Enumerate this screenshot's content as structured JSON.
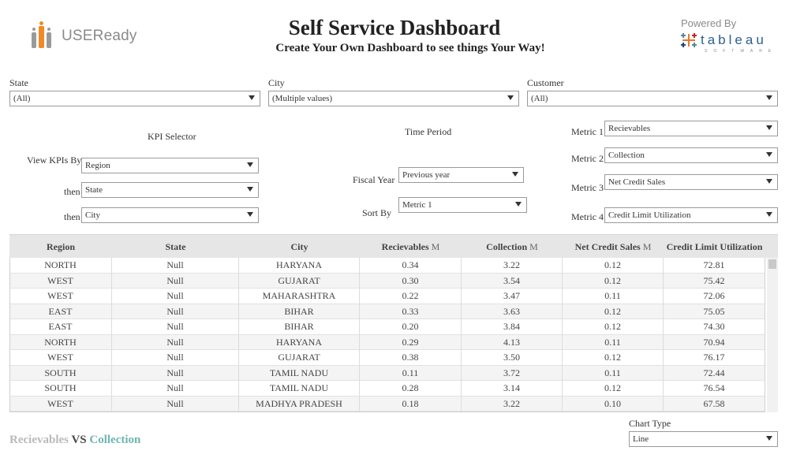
{
  "header": {
    "logo_text": "USEReady",
    "title": "Self Service Dashboard",
    "subtitle": "Create Your Own Dashboard to see things Your Way!",
    "powered_by": "Powered By",
    "tableau_word": "tableau",
    "tableau_sub": "SOFTWARE"
  },
  "filters": {
    "state": {
      "label": "State",
      "value": "(All)"
    },
    "city": {
      "label": "City",
      "value": "(Multiple values)"
    },
    "customer": {
      "label": "Customer",
      "value": "(All)"
    }
  },
  "kpi": {
    "selector_title": "KPI Selector",
    "view_by_label": "View KPIs By",
    "view_by_value": "Region",
    "then1_label": "then",
    "then1_value": "State",
    "then2_label": "then",
    "then2_value": "City"
  },
  "time": {
    "title": "Time Period",
    "fiscal_label": "Fiscal Year",
    "fiscal_value": "Previous year",
    "sort_label": "Sort By",
    "sort_value": "Metric 1"
  },
  "metrics": {
    "m1_label": "Metric 1",
    "m1_value": "Recievables",
    "m2_label": "Metric 2",
    "m2_value": "Collection",
    "m3_label": "Metric 3",
    "m3_value": "Net Credit Sales",
    "m4_label": "Metric 4",
    "m4_value": "Credit Limit Utilization"
  },
  "table": {
    "columns": [
      "Region",
      "State",
      "City",
      "Recievables",
      "Collection",
      "Net Credit Sales",
      "Credit Limit Utilization"
    ],
    "units": [
      "",
      "",
      "",
      "M",
      "M",
      "M",
      ""
    ],
    "rows": [
      [
        "NORTH",
        "Null",
        "HARYANA",
        "0.34",
        "3.22",
        "0.12",
        "72.81"
      ],
      [
        "WEST",
        "Null",
        "GUJARAT",
        "0.30",
        "3.54",
        "0.12",
        "75.42"
      ],
      [
        "WEST",
        "Null",
        "MAHARASHTRA",
        "0.22",
        "3.47",
        "0.11",
        "72.06"
      ],
      [
        "EAST",
        "Null",
        "BIHAR",
        "0.33",
        "3.63",
        "0.12",
        "75.05"
      ],
      [
        "EAST",
        "Null",
        "BIHAR",
        "0.20",
        "3.84",
        "0.12",
        "74.30"
      ],
      [
        "NORTH",
        "Null",
        "HARYANA",
        "0.29",
        "4.13",
        "0.11",
        "70.94"
      ],
      [
        "WEST",
        "Null",
        "GUJARAT",
        "0.38",
        "3.50",
        "0.12",
        "76.17"
      ],
      [
        "SOUTH",
        "Null",
        "TAMIL NADU",
        "0.11",
        "3.72",
        "0.11",
        "72.44"
      ],
      [
        "SOUTH",
        "Null",
        "TAMIL NADU",
        "0.28",
        "3.14",
        "0.12",
        "76.54"
      ],
      [
        "WEST",
        "Null",
        "MADHYA PRADESH",
        "0.18",
        "3.22",
        "0.10",
        "67.58"
      ]
    ]
  },
  "chart_type": {
    "label": "Chart Type",
    "value": "Line"
  },
  "bottom_title": {
    "part1": "Recievables",
    "part2": " VS ",
    "part3": "Collection",
    "color1": "#b9b9b9",
    "color2": "#4a4a4a",
    "color3": "#6fb5b0"
  },
  "colors": {
    "logo_orange": "#f08a24",
    "logo_gray": "#9a9a9a",
    "header_bg": "#e6e6e6"
  }
}
